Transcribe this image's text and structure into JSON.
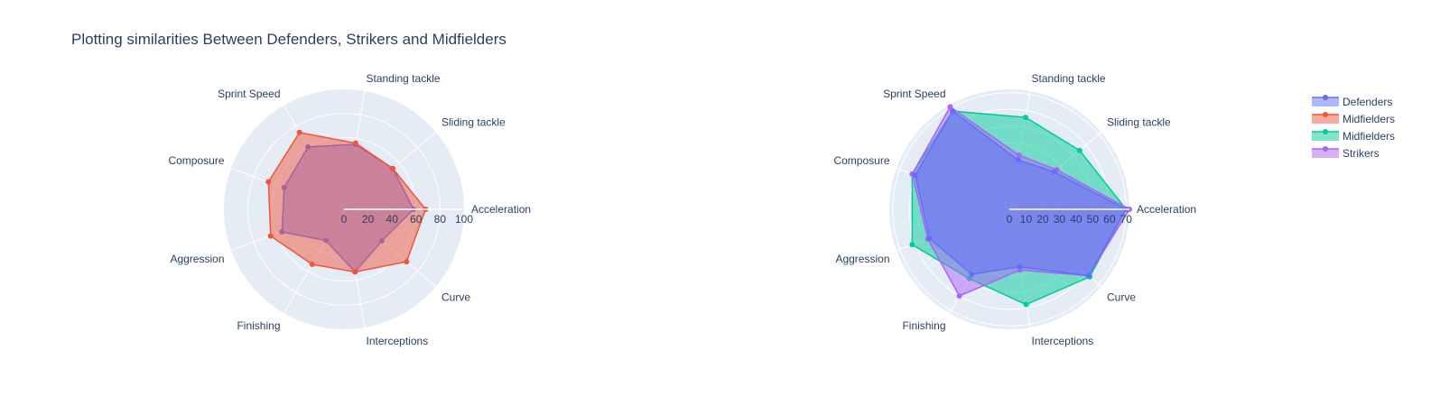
{
  "chart_data": [
    {
      "type": "radar",
      "title": "Plotting similarities Between Defenders, Strikers and Midfielders",
      "categories": [
        "Acceleration",
        "Sliding tackle",
        "Standing tackle",
        "Sprint Speed",
        "Composure",
        "Aggression",
        "Finishing",
        "Interceptions",
        "Curve"
      ],
      "radial_range": [
        0,
        100
      ],
      "radial_ticks": [
        "0",
        "20",
        "40",
        "60",
        "80",
        "100"
      ],
      "series": [
        {
          "name": "Defenders",
          "color": "#636efa",
          "values": [
            58,
            53,
            55,
            60,
            53,
            55,
            30,
            53,
            41
          ]
        },
        {
          "name": "Midfielders",
          "color": "#ef553b",
          "values": [
            68,
            53,
            56,
            74,
            67,
            65,
            53,
            53,
            68
          ]
        }
      ]
    },
    {
      "type": "radar",
      "categories": [
        "Acceleration",
        "Sliding tackle",
        "Standing tackle",
        "Sprint Speed",
        "Composure",
        "Aggression",
        "Finishing",
        "Interceptions",
        "Curve"
      ],
      "radial_range": [
        0,
        72
      ],
      "radial_ticks": [
        "0",
        "10",
        "20",
        "30",
        "40",
        "50",
        "60",
        "70"
      ],
      "series": [
        {
          "name": "Midfielders",
          "color": "#00cc96",
          "values": [
            70,
            55,
            56,
            68,
            62,
            62,
            48,
            58,
            63
          ]
        },
        {
          "name": "Strikers",
          "color": "#ab63fa",
          "values": [
            72,
            37,
            33,
            71,
            62,
            52,
            60,
            37,
            62
          ]
        },
        {
          "name": "Defenders",
          "color": "#636efa",
          "values": [
            70,
            35,
            30,
            68,
            60,
            51,
            45,
            35,
            62
          ]
        }
      ]
    }
  ],
  "legend": {
    "position": "top-right",
    "items": [
      {
        "name": "Defenders",
        "color": "#636efa"
      },
      {
        "name": "Midfielders",
        "color": "#ef553b"
      },
      {
        "name": "Midfielders",
        "color": "#00cc96"
      },
      {
        "name": "Strikers",
        "color": "#ab63fa"
      }
    ]
  }
}
